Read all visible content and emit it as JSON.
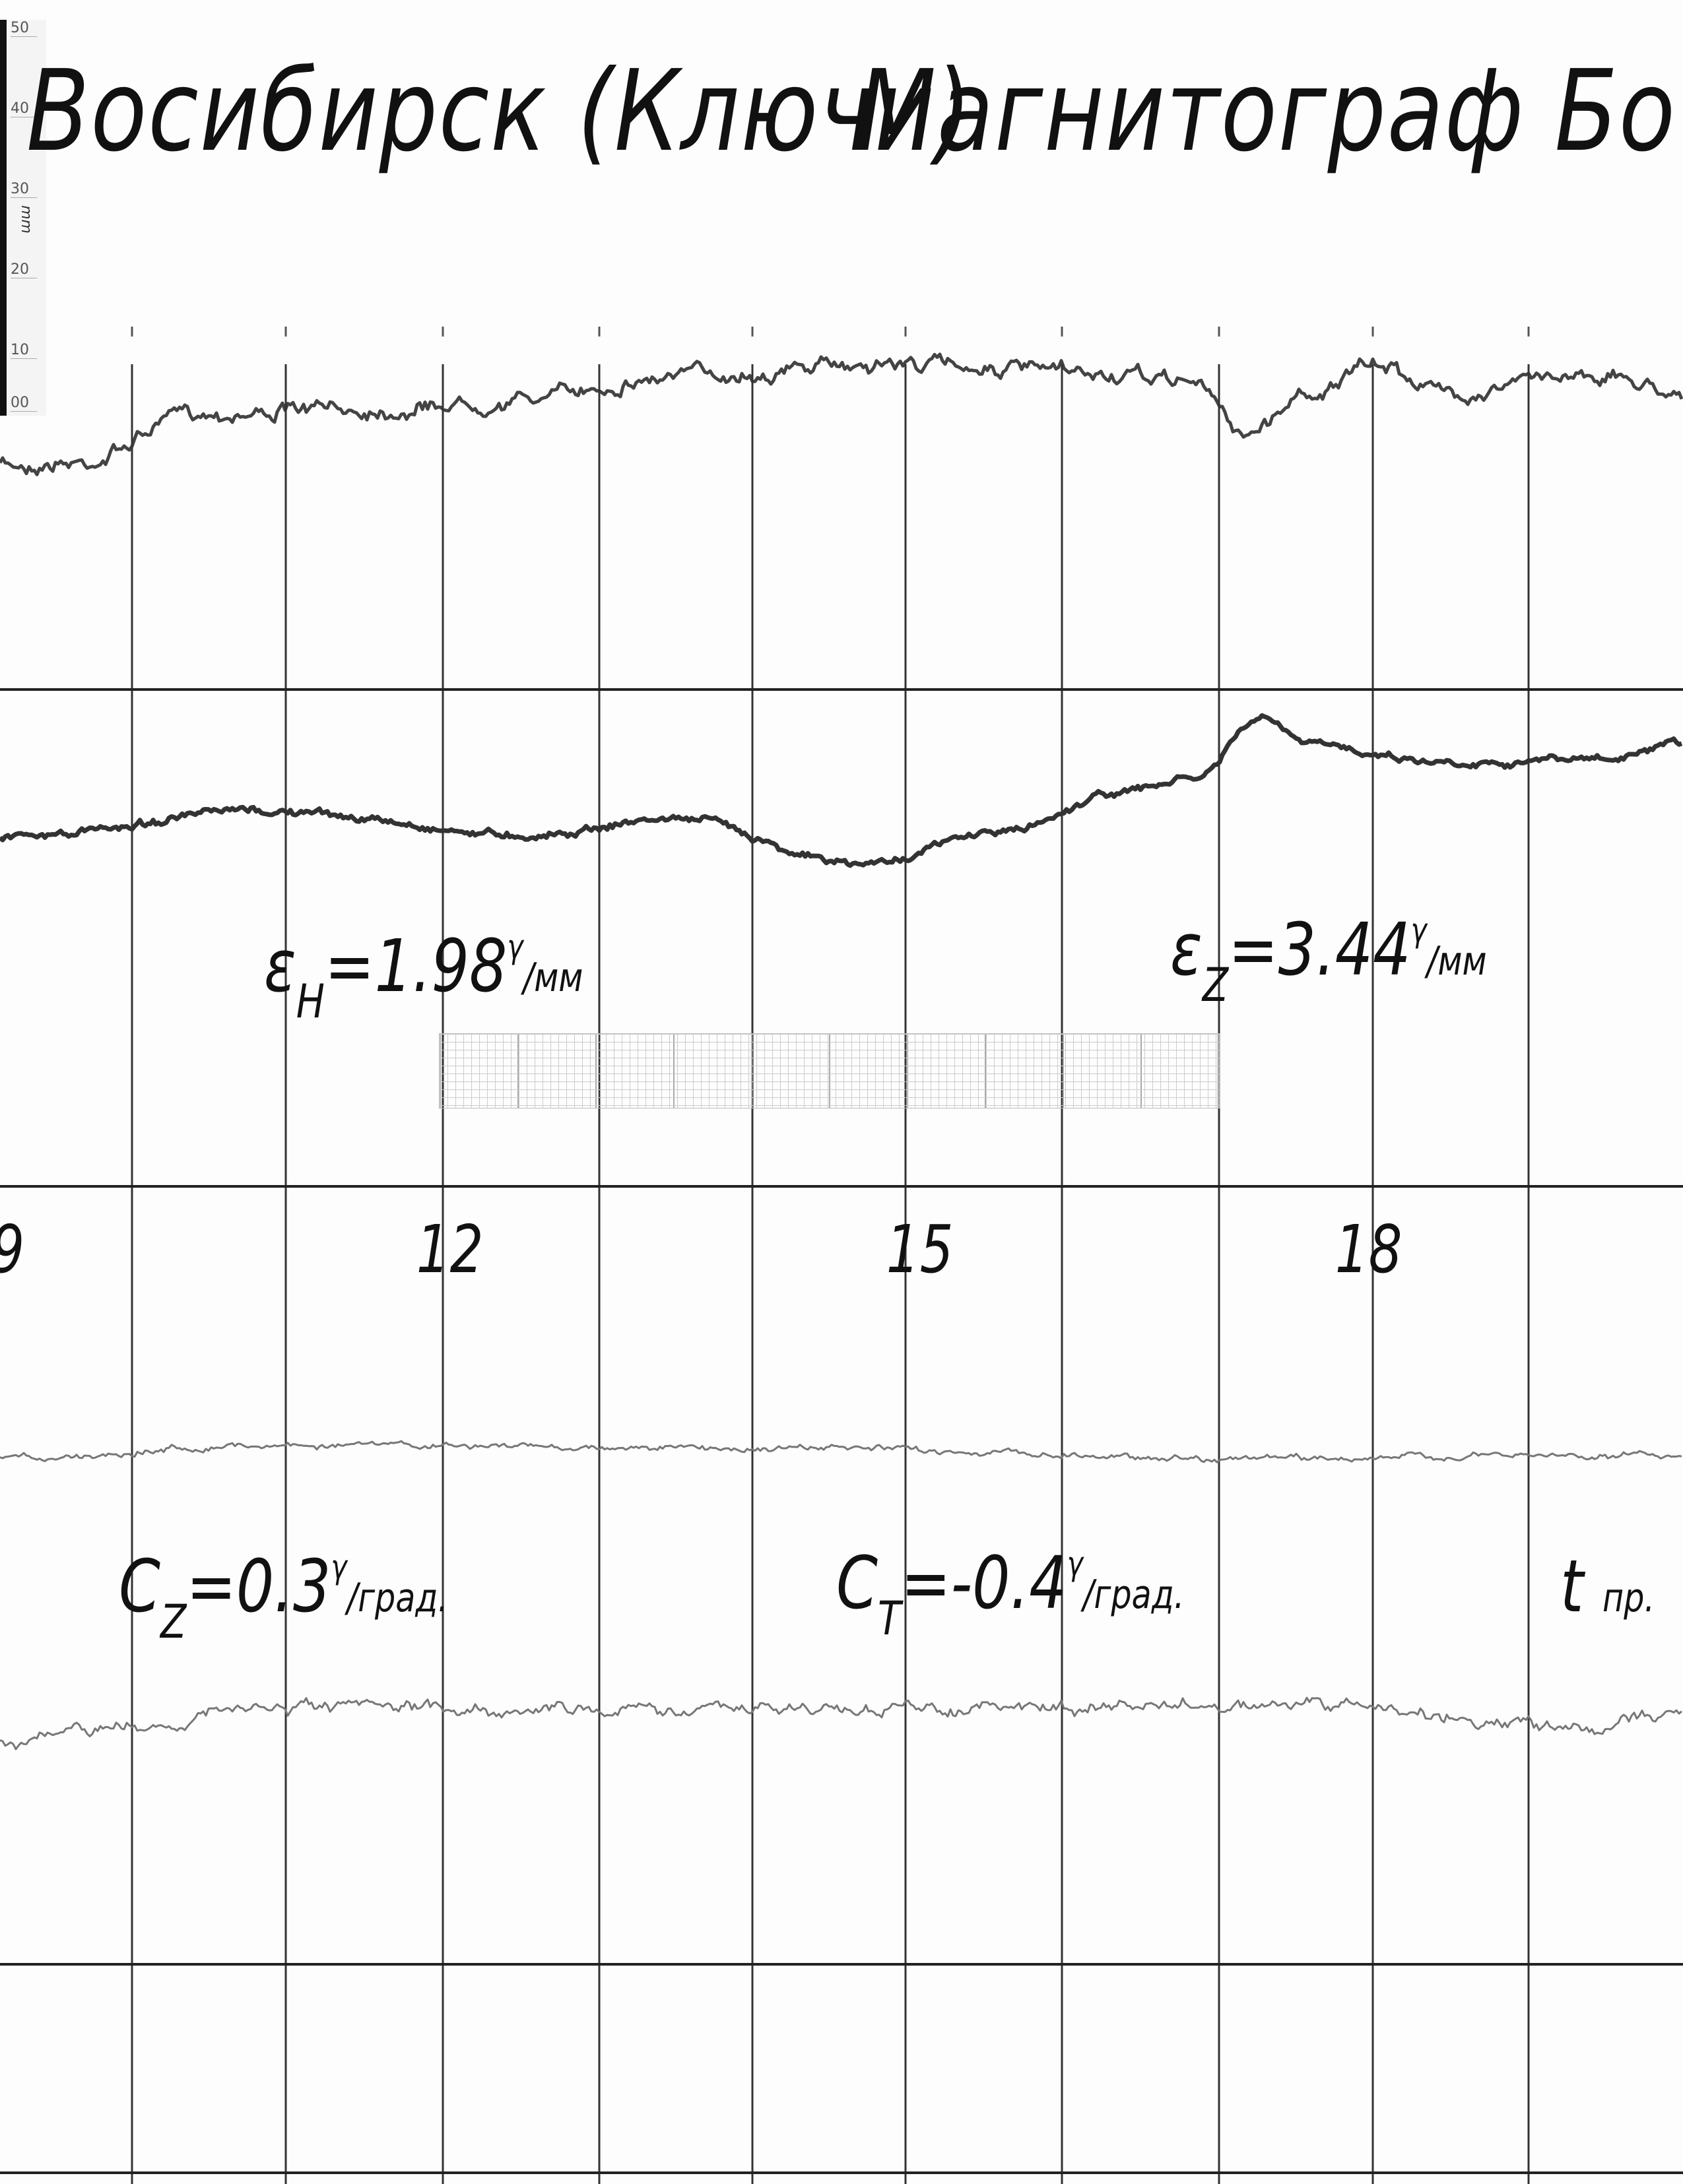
{
  "header": {
    "station": "Восибирск (Ключи)",
    "instrument": "Магнитограф Бо"
  },
  "ruler": {
    "unit": "mm",
    "labels": [
      "50",
      "40",
      "30",
      "20",
      "10",
      "00"
    ]
  },
  "scales": {
    "eps_h": {
      "symbol": "ε",
      "sub": "H",
      "value": "=1.98",
      "sup": "γ",
      "unit": "/мм"
    },
    "eps_z": {
      "symbol": "ε",
      "sub": "Z",
      "value": "=3.44",
      "sup": "γ",
      "unit": "/мм"
    },
    "c_z": {
      "symbol": "C",
      "sub": "Z",
      "value": "=0.3",
      "sup": "γ",
      "unit": "/град."
    },
    "c_t": {
      "symbol": "C",
      "sub": "T",
      "value": "=-0.4",
      "sup": "γ",
      "unit": "/град."
    },
    "t_pr": {
      "symbol": "t",
      "unit": "пр."
    }
  },
  "hours": [
    "9",
    "12",
    "15",
    "18"
  ],
  "traces": [
    "H",
    "Z",
    "temperature-Z",
    "temperature-T"
  ],
  "colors": {
    "ink": "#111111",
    "trace": "#555555",
    "paper": "#fdfdfd"
  }
}
